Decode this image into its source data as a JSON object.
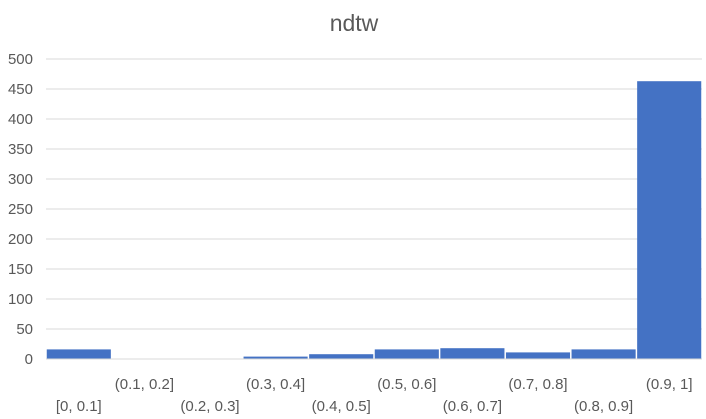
{
  "chart_data": {
    "type": "bar",
    "title": "ndtw",
    "xlabel": "",
    "ylabel": "",
    "ylim": [
      0,
      500
    ],
    "yticks": [
      0,
      50,
      100,
      150,
      200,
      250,
      300,
      350,
      400,
      450,
      500
    ],
    "grid": true,
    "legend": "none",
    "bar_color": "#4472c4",
    "categories": [
      "[0, 0.1]",
      "(0.1, 0.2]",
      "(0.2, 0.3]",
      "(0.3, 0.4]",
      "(0.4, 0.5]",
      "(0.5, 0.6]",
      "(0.6, 0.7]",
      "(0.7, 0.8]",
      "(0.8, 0.9]",
      "(0.9, 1]"
    ],
    "values": [
      16,
      0,
      0,
      4,
      8,
      16,
      18,
      11,
      16,
      463
    ]
  }
}
